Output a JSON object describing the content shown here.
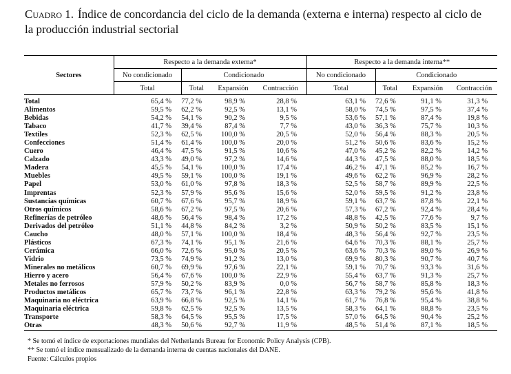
{
  "title": {
    "label": "Cuadro 1.",
    "text": "Índice de concordancia del ciclo de la demanda (externa e interna) respecto al ciclo de la producción industrial sectorial"
  },
  "table": {
    "group_headers": [
      "Respecto a la demanda externa*",
      "Respecto a la demanda interna**"
    ],
    "sub_headers": [
      "No condicionado",
      "Condicionado",
      "No condicionado",
      "Condicionado"
    ],
    "column_headers": [
      "Sectores",
      "Total",
      "Total",
      "Expansión",
      "Contracción",
      "Total",
      "Total",
      "Expansión",
      "Contracción"
    ],
    "rows": [
      [
        "Total",
        "65,4 %",
        "77,2 %",
        "98,9 %",
        "28,8 %",
        "63,1 %",
        "72,6 %",
        "91,1 %",
        "31,3 %"
      ],
      [
        "Alimentos",
        "59,5 %",
        "62,2 %",
        "92,5 %",
        "13,1 %",
        "58,0 %",
        "74,5 %",
        "97,5 %",
        "37,4 %"
      ],
      [
        "Bebidas",
        "54,2 %",
        "54,1 %",
        "90,2 %",
        "9,5 %",
        "53,6 %",
        "57,1 %",
        "87,4 %",
        "19,8 %"
      ],
      [
        "Tabaco",
        "41,7 %",
        "39,4 %",
        "87,4 %",
        "7,7 %",
        "43,0 %",
        "36,3 %",
        "75,7 %",
        "10,3 %"
      ],
      [
        "Textiles",
        "52,3 %",
        "62,5 %",
        "100,0 %",
        "20,5 %",
        "52,0 %",
        "56,4 %",
        "88,3 %",
        "20,5 %"
      ],
      [
        "Confecciones",
        "51,4 %",
        "61,4 %",
        "100,0 %",
        "20,0 %",
        "51,2 %",
        "50,6 %",
        "83,6 %",
        "15,2 %"
      ],
      [
        "Cuero",
        "46,4 %",
        "47,5 %",
        "91,5 %",
        "10,6 %",
        "47,0 %",
        "45,2 %",
        "82,2 %",
        "14,2 %"
      ],
      [
        "Calzado",
        "43,3 %",
        "49,0 %",
        "97,2 %",
        "14,6 %",
        "44,3 %",
        "47,5 %",
        "88,0 %",
        "18,5 %"
      ],
      [
        "Madera",
        "45,5 %",
        "54,1 %",
        "100,0 %",
        "17,4 %",
        "46,2 %",
        "47,1 %",
        "85,2 %",
        "16,7 %"
      ],
      [
        "Muebles",
        "49,5 %",
        "59,1 %",
        "100,0 %",
        "19,1 %",
        "49,6 %",
        "62,2 %",
        "96,9 %",
        "28,2 %"
      ],
      [
        "Papel",
        "53,0 %",
        "61,0 %",
        "97,8 %",
        "18,3 %",
        "52,5 %",
        "58,7 %",
        "89,9 %",
        "22,5 %"
      ],
      [
        "Imprentas",
        "52,3 %",
        "57,9 %",
        "95,6 %",
        "15,6 %",
        "52,0 %",
        "59,5 %",
        "91,2 %",
        "23,8 %"
      ],
      [
        "Sustancias químicas",
        "60,7 %",
        "67,6 %",
        "95,7 %",
        "18,9 %",
        "59,1 %",
        "63,7 %",
        "87,8 %",
        "22,1 %"
      ],
      [
        "Otros químicos",
        "58,6 %",
        "67,2 %",
        "97,5 %",
        "20,6 %",
        "57,3 %",
        "67,2 %",
        "92,4 %",
        "28,4 %"
      ],
      [
        "Refinerías de petróleo",
        "48,6 %",
        "56,4 %",
        "98,4 %",
        "17,2 %",
        "48,8 %",
        "42,5 %",
        "77,6 %",
        "9,7 %"
      ],
      [
        "Derivados del petróleo",
        "51,1 %",
        "44,8 %",
        "84,2 %",
        "3,2 %",
        "50,9 %",
        "50,2 %",
        "83,5 %",
        "15,1 %"
      ],
      [
        "Caucho",
        "48,0 %",
        "57,1 %",
        "100,0 %",
        "18,4 %",
        "48,3 %",
        "56,4 %",
        "92,7 %",
        "23,5 %"
      ],
      [
        "Plásticos",
        "67,3 %",
        "74,1 %",
        "95,1 %",
        "21,6 %",
        "64,6 %",
        "70,3 %",
        "88,1 %",
        "25,7 %"
      ],
      [
        "Cerámica",
        "66,0 %",
        "72,6 %",
        "95,0 %",
        "20,5 %",
        "63,6 %",
        "70,3 %",
        "89,0 %",
        "26,9 %"
      ],
      [
        "Vidrio",
        "73,5 %",
        "74,9 %",
        "91,2 %",
        "13,0 %",
        "69,9 %",
        "80,3 %",
        "90,7 %",
        "40,7 %"
      ],
      [
        "Minerales no metálicos",
        "60,7 %",
        "69,9 %",
        "97,6 %",
        "22,1 %",
        "59,1 %",
        "70,7 %",
        "93,3 %",
        "31,6 %"
      ],
      [
        "Hierro y acero",
        "56,4 %",
        "67,6 %",
        "100,0 %",
        "22,9 %",
        "55,4 %",
        "63,7 %",
        "91,3 %",
        "25,7 %"
      ],
      [
        "Metales no ferrosos",
        "57,9 %",
        "50,2 %",
        "83,9 %",
        "0,0 %",
        "56,7 %",
        "58,7 %",
        "85,8 %",
        "18,3 %"
      ],
      [
        "Productos metálicos",
        "65,7 %",
        "73,7 %",
        "96,1 %",
        "22,8 %",
        "63,3 %",
        "79,2 %",
        "95,6 %",
        "41,8 %"
      ],
      [
        "Maquinaria no eléctrica",
        "63,9 %",
        "66,8 %",
        "92,5 %",
        "14,1 %",
        "61,7 %",
        "76,8 %",
        "95,4 %",
        "38,8 %"
      ],
      [
        "Maquinaria eléctrica",
        "59,8 %",
        "62,5 %",
        "92,5 %",
        "13,5 %",
        "58,3 %",
        "64,1 %",
        "88,8 %",
        "23,5 %"
      ],
      [
        "Transporte",
        "58,3 %",
        "64,5 %",
        "95,5 %",
        "17,5 %",
        "57,0 %",
        "64,5 %",
        "90,4 %",
        "25,2 %"
      ],
      [
        "Otras",
        "48,3 %",
        "50,6 %",
        "92,7 %",
        "11,9 %",
        "48,5 %",
        "51,4 %",
        "87,1 %",
        "18,5 %"
      ]
    ]
  },
  "footnotes": [
    "* Se tomó el índice de exportaciones mundiales del Netherlands Bureau for Economic Policy Analysis (CPB).",
    "** Se tomó el índice mensualizado de la demanda interna de cuentas nacionales del DANE.",
    "Fuente: Cálculos propios"
  ]
}
